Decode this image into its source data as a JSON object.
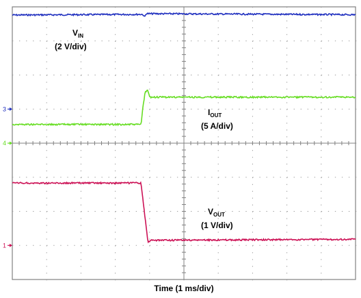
{
  "chart_data": {
    "type": "line",
    "xlabel": "Time (1 ms/div)",
    "grid": true,
    "divisions": {
      "x": 10,
      "y": 8
    },
    "series": [
      {
        "channel": "1",
        "label_main": "V",
        "label_sub": "IN",
        "scale": "(2 V/div)",
        "color": "#1f2fbf",
        "points": [
          [
            0,
            7.76
          ],
          [
            3.8,
            7.78
          ],
          [
            3.85,
            7.7
          ],
          [
            3.9,
            7.8
          ],
          [
            10,
            7.77
          ]
        ],
        "marker": null
      },
      {
        "channel": "3",
        "label_main": "I",
        "label_sub": "OUT",
        "scale": "(5 A/div)",
        "color": "#66dd22",
        "points": [
          [
            0,
            4.55
          ],
          [
            3.75,
            4.55
          ],
          [
            3.8,
            5.0
          ],
          [
            3.87,
            5.5
          ],
          [
            3.95,
            5.55
          ],
          [
            4.0,
            5.35
          ],
          [
            10,
            5.35
          ]
        ],
        "marker": {
          "text": "3",
          "level": 5.0,
          "color": "#1f2fbf"
        }
      },
      {
        "channel": "4",
        "label_main": "",
        "label_sub": "",
        "scale": "",
        "color": "#66dd22",
        "points": [],
        "marker": {
          "text": "4",
          "level": 4.0,
          "color": "#66dd22"
        }
      },
      {
        "channel": "1",
        "label_main": "V",
        "label_sub": "OUT",
        "scale": "(1 V/div)",
        "color": "#cc1155",
        "points": [
          [
            0,
            2.83
          ],
          [
            3.75,
            2.83
          ],
          [
            3.95,
            1.1
          ],
          [
            4.05,
            1.15
          ],
          [
            10,
            1.18
          ]
        ],
        "marker": {
          "text": "1",
          "level": 1.0,
          "color": "#cc1155"
        }
      }
    ]
  }
}
